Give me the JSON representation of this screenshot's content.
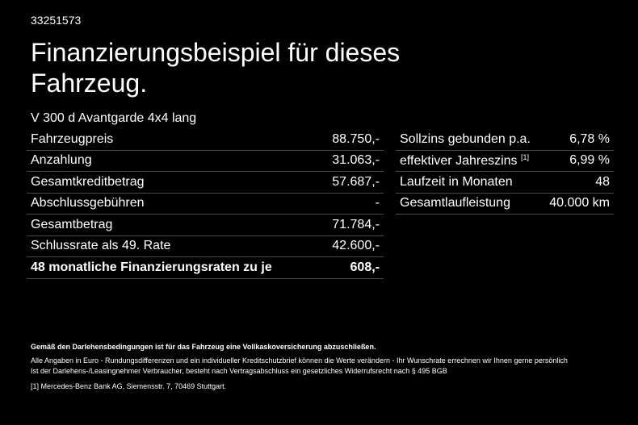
{
  "header": {
    "id": "33251573",
    "title_lines": [
      "Finanzierungsbeispiel für dieses",
      "Fahrzeug."
    ],
    "subtitle": "V 300 d Avantgarde 4x4 lang"
  },
  "left_table": {
    "rows": [
      [
        "Fahrzeugpreis",
        "88.750,-"
      ],
      [
        "Anzahlung",
        "31.063,-"
      ],
      [
        "Gesamtkreditbetrag",
        "57.687,-"
      ],
      [
        "Abschlussgebühren",
        "-"
      ],
      [
        "Gesamtbetrag",
        "71.784,-"
      ],
      [
        "Schlussrate als 49. Rate",
        "42.600,-"
      ],
      [
        "48 monatliche Finanzierungsraten zu je",
        "608,-"
      ]
    ]
  },
  "right_table": {
    "rows": [
      [
        "Sollzins gebunden p.a.",
        "6,78 %"
      ],
      [
        "effektiver Jahreszins",
        "6,99 %"
      ],
      [
        "Laufzeit in Monaten",
        "48"
      ],
      [
        "Gesamtlaufleistung",
        "40.000 km"
      ]
    ],
    "footnote_ref": "[1]"
  },
  "footer": {
    "bold_line": "Gemäß den Darlehensbedingungen ist für das Fahrzeug eine Vollkaskoversicherung abzuschließen.",
    "lines": [
      "Alle Angaben in Euro - Rundungsdifferenzen und ein individueller Kreditschutzbrief können die Werte verändern - Ihr Wunschrate errechnen wir Ihnen gerne persönlich",
      "Ist der Darlehens-/Leasingnehmer Verbraucher, besteht nach Vertragsabschluss ein gesetzliches Widerrufsrecht nach § 495 BGB"
    ],
    "footnote_marker": "[1]",
    "footnote_text": "Mercedes-Benz Bank AG, Siemensstr. 7, 70469 Stuttgart."
  }
}
